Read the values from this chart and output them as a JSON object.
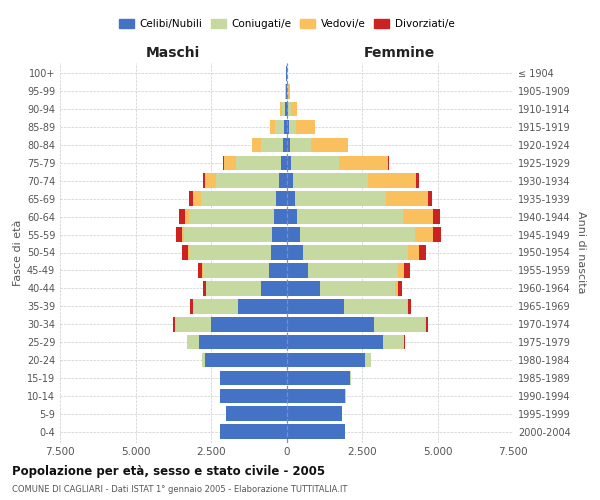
{
  "age_groups": [
    "0-4",
    "5-9",
    "10-14",
    "15-19",
    "20-24",
    "25-29",
    "30-34",
    "35-39",
    "40-44",
    "45-49",
    "50-54",
    "55-59",
    "60-64",
    "65-69",
    "70-74",
    "75-79",
    "80-84",
    "85-89",
    "90-94",
    "95-99",
    "100+"
  ],
  "birth_years": [
    "2000-2004",
    "1995-1999",
    "1990-1994",
    "1985-1989",
    "1980-1984",
    "1975-1979",
    "1970-1974",
    "1965-1969",
    "1960-1964",
    "1955-1959",
    "1950-1954",
    "1945-1949",
    "1940-1944",
    "1935-1939",
    "1930-1934",
    "1925-1929",
    "1920-1924",
    "1915-1919",
    "1910-1914",
    "1905-1909",
    "≤ 1904"
  ],
  "males": {
    "celibe": [
      2200,
      2000,
      2200,
      2200,
      2700,
      2900,
      2500,
      1600,
      850,
      580,
      520,
      480,
      420,
      340,
      250,
      180,
      130,
      80,
      50,
      20,
      10
    ],
    "coniugato": [
      0,
      0,
      5,
      10,
      100,
      400,
      1200,
      1500,
      1800,
      2200,
      2700,
      2900,
      2800,
      2500,
      2100,
      1500,
      700,
      300,
      100,
      20,
      10
    ],
    "vedovo": [
      0,
      0,
      0,
      0,
      0,
      0,
      5,
      5,
      10,
      30,
      50,
      80,
      150,
      250,
      350,
      400,
      300,
      150,
      50,
      15,
      5
    ],
    "divorziato": [
      0,
      0,
      0,
      0,
      5,
      10,
      50,
      80,
      100,
      130,
      180,
      200,
      180,
      130,
      80,
      30,
      20,
      10,
      5,
      0,
      0
    ]
  },
  "females": {
    "nubile": [
      1950,
      1850,
      1950,
      2100,
      2600,
      3200,
      2900,
      1900,
      1100,
      700,
      530,
      450,
      360,
      280,
      200,
      150,
      120,
      80,
      60,
      30,
      10
    ],
    "coniugata": [
      0,
      0,
      5,
      20,
      200,
      700,
      1700,
      2100,
      2500,
      3000,
      3500,
      3800,
      3500,
      3000,
      2500,
      1600,
      700,
      250,
      80,
      20,
      10
    ],
    "vedova": [
      0,
      0,
      0,
      0,
      0,
      5,
      10,
      30,
      80,
      200,
      350,
      600,
      1000,
      1400,
      1600,
      1600,
      1200,
      600,
      200,
      50,
      10
    ],
    "divorziata": [
      0,
      0,
      0,
      0,
      5,
      20,
      80,
      100,
      150,
      180,
      230,
      250,
      220,
      150,
      100,
      50,
      20,
      10,
      5,
      0,
      0
    ]
  },
  "colors": {
    "celibe": "#4472c4",
    "coniugato": "#c5d9a0",
    "vedovo": "#fac05e",
    "divorziato": "#cc2222"
  },
  "xlim": 7500,
  "title": "Popolazione per età, sesso e stato civile - 2005",
  "subtitle": "COMUNE DI CAGLIARI - Dati ISTAT 1° gennaio 2005 - Elaborazione TUTTITALIA.IT",
  "xlabel_left": "Maschi",
  "xlabel_right": "Femmine",
  "ylabel_left": "Fasce di età",
  "ylabel_right": "Anni di nascita",
  "legend_labels": [
    "Celibi/Nubili",
    "Coniugati/e",
    "Vedovi/e",
    "Divorziati/e"
  ],
  "background_color": "#ffffff",
  "grid_color": "#cccccc"
}
